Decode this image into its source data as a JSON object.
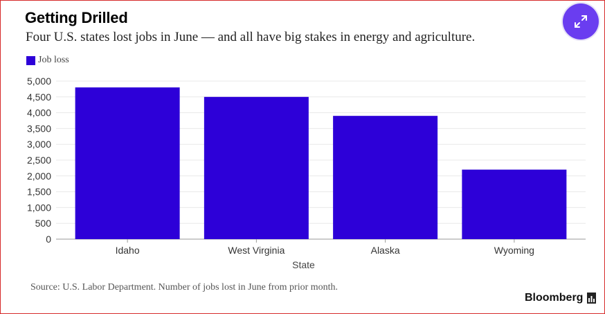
{
  "header": {
    "title": "Getting Drilled",
    "subtitle": "Four U.S. states lost jobs in June — and all have big stakes in energy and agriculture."
  },
  "controls": {
    "expand_icon": "expand-arrows-icon"
  },
  "colors": {
    "bar": "#2d00d8",
    "accent": "#6a3df0",
    "grid": "#e8e8e8",
    "axis": "#999999"
  },
  "chart_data": {
    "type": "bar",
    "categories": [
      "Idaho",
      "West Virginia",
      "Alaska",
      "Wyoming"
    ],
    "series": [
      {
        "name": "Job loss",
        "values": [
          4800,
          4500,
          3900,
          2200
        ]
      }
    ],
    "xlabel": "State",
    "ylabel": "",
    "ylim": [
      0,
      5000
    ],
    "yticks": [
      0,
      500,
      1000,
      1500,
      2000,
      2500,
      3000,
      3500,
      4000,
      4500,
      5000
    ],
    "ytick_labels": [
      "0",
      "500",
      "1,000",
      "1,500",
      "2,000",
      "2,500",
      "3,000",
      "3,500",
      "4,000",
      "4,500",
      "5,000"
    ],
    "grid": true,
    "legend": "top-left"
  },
  "footer": {
    "source": "Source: U.S. Labor Department. Number of jobs lost in June from prior month.",
    "brand": "Bloomberg"
  }
}
